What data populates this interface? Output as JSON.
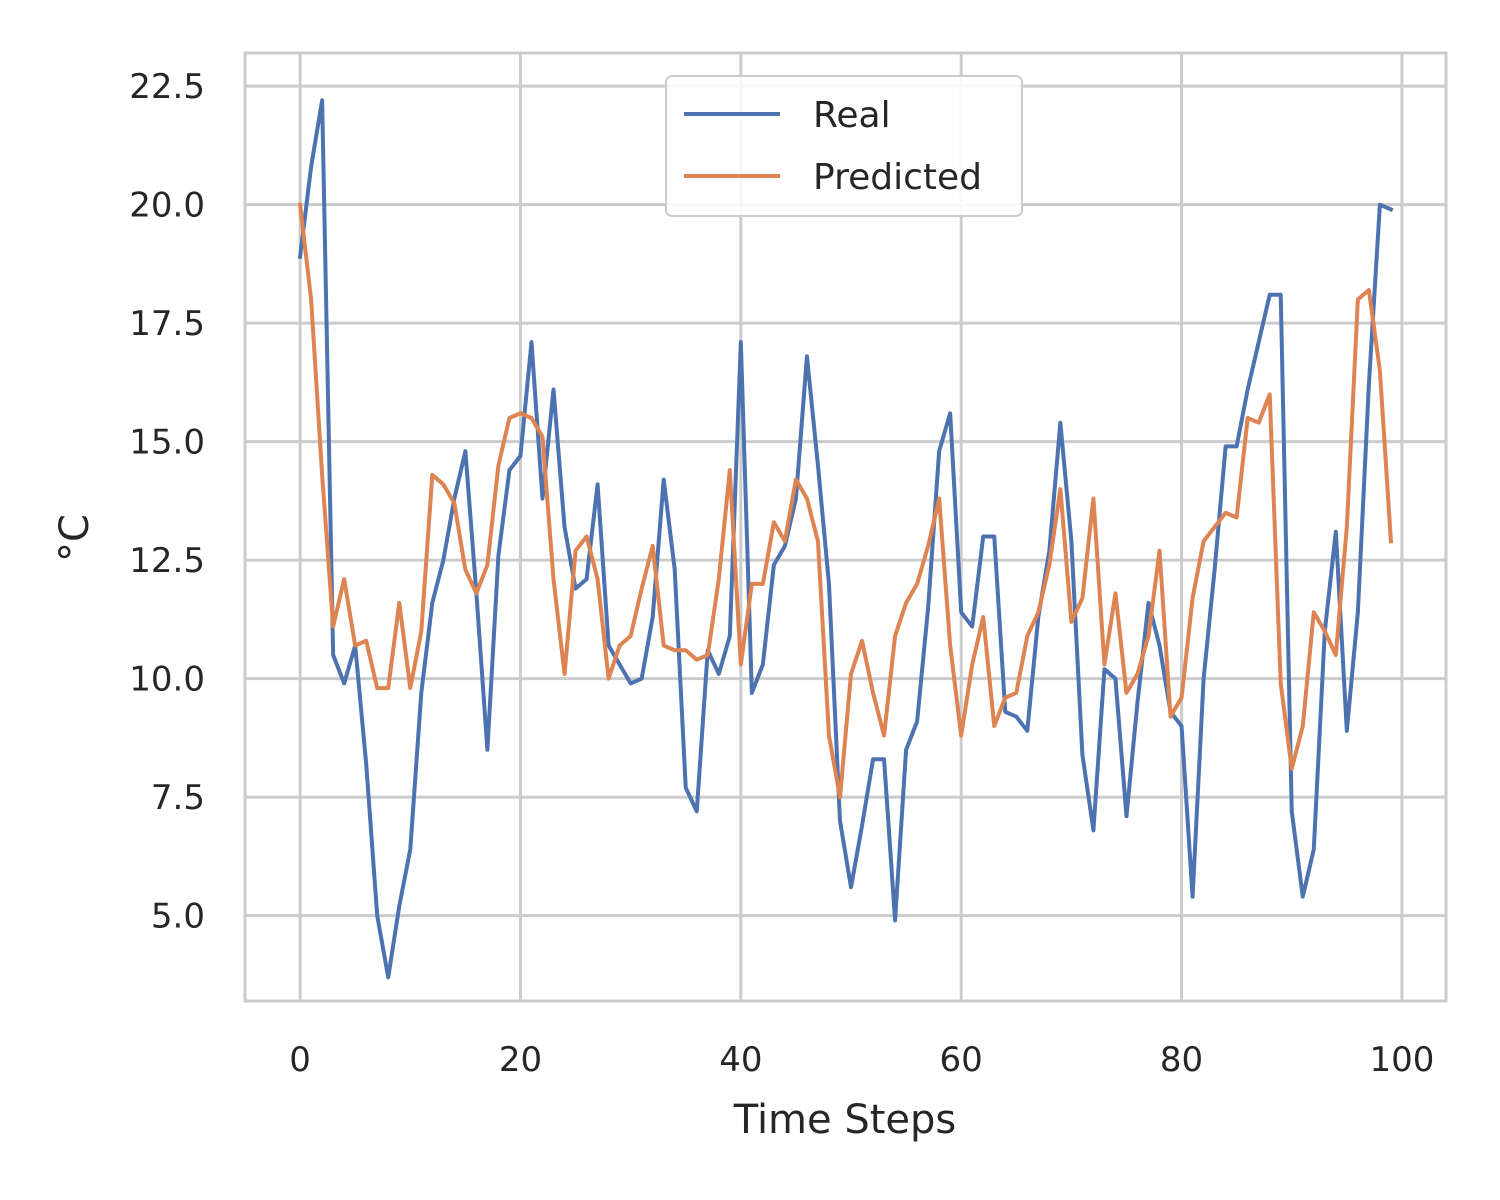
{
  "chart_data": {
    "type": "line",
    "xlabel": "Time Steps",
    "ylabel": "°C",
    "xlim": [
      -5,
      104
    ],
    "ylim": [
      3.2,
      23.2
    ],
    "xticks": [
      0,
      20,
      40,
      60,
      80,
      100
    ],
    "xtick_labels": [
      "0",
      "20",
      "40",
      "60",
      "80",
      "100"
    ],
    "yticks": [
      5.0,
      7.5,
      10.0,
      12.5,
      15.0,
      17.5,
      20.0,
      22.5
    ],
    "ytick_labels": [
      "5.0",
      "7.5",
      "10.0",
      "12.5",
      "15.0",
      "17.5",
      "20.0",
      "22.5"
    ],
    "grid": true,
    "legend_position": "top-center",
    "series": [
      {
        "name": "Real",
        "color": "#4c72b0",
        "values": [
          18.9,
          20.8,
          22.2,
          10.5,
          9.9,
          10.7,
          8.2,
          5.0,
          3.7,
          5.2,
          6.4,
          9.7,
          11.6,
          12.5,
          13.8,
          14.8,
          11.8,
          8.5,
          12.6,
          14.4,
          14.7,
          17.1,
          13.8,
          16.1,
          13.2,
          11.9,
          12.1,
          14.1,
          10.7,
          10.3,
          9.9,
          10.0,
          11.3,
          14.2,
          12.3,
          7.7,
          7.2,
          10.6,
          10.1,
          10.9,
          17.1,
          9.7,
          10.3,
          12.4,
          12.8,
          13.8,
          16.8,
          14.5,
          12.0,
          7.0,
          5.6,
          6.9,
          8.3,
          8.3,
          4.9,
          8.5,
          9.1,
          11.5,
          14.8,
          15.6,
          11.4,
          11.1,
          13.0,
          13.0,
          9.3,
          9.2,
          8.9,
          11.3,
          12.7,
          15.4,
          12.9,
          8.4,
          6.8,
          10.2,
          10.0,
          7.1,
          9.5,
          11.6,
          10.7,
          9.3,
          9.0,
          5.4,
          10.0,
          12.3,
          14.9,
          14.9,
          16.1,
          17.1,
          18.1,
          18.1,
          7.2,
          5.4,
          6.4,
          11.0,
          13.1,
          8.9,
          11.4,
          16.2,
          20.0,
          19.9
        ]
      },
      {
        "name": "Predicted",
        "color": "#dd8452",
        "values": [
          20.0,
          18.0,
          14.3,
          11.1,
          12.1,
          10.7,
          10.8,
          9.8,
          9.8,
          11.6,
          9.8,
          11.0,
          14.3,
          14.1,
          13.7,
          12.3,
          11.8,
          12.4,
          14.5,
          15.5,
          15.6,
          15.5,
          15.1,
          12.1,
          10.1,
          12.7,
          13.0,
          12.1,
          10.0,
          10.7,
          10.9,
          11.9,
          12.8,
          10.7,
          10.6,
          10.6,
          10.4,
          10.5,
          12.1,
          14.4,
          10.3,
          12.0,
          12.0,
          13.3,
          12.9,
          14.2,
          13.8,
          12.9,
          8.8,
          7.5,
          10.1,
          10.8,
          9.7,
          8.8,
          10.9,
          11.6,
          12.0,
          12.8,
          13.8,
          10.7,
          8.8,
          10.3,
          11.3,
          9.0,
          9.6,
          9.7,
          10.9,
          11.4,
          12.4,
          14.0,
          11.2,
          11.7,
          13.8,
          10.3,
          11.8,
          9.7,
          10.1,
          10.9,
          12.7,
          9.2,
          9.6,
          11.7,
          12.9,
          13.2,
          13.5,
          13.4,
          15.5,
          15.4,
          16.0,
          9.9,
          8.1,
          9.0,
          11.4,
          11.0,
          10.5,
          13.2,
          18.0,
          18.2,
          16.5,
          12.9
        ]
      }
    ]
  }
}
